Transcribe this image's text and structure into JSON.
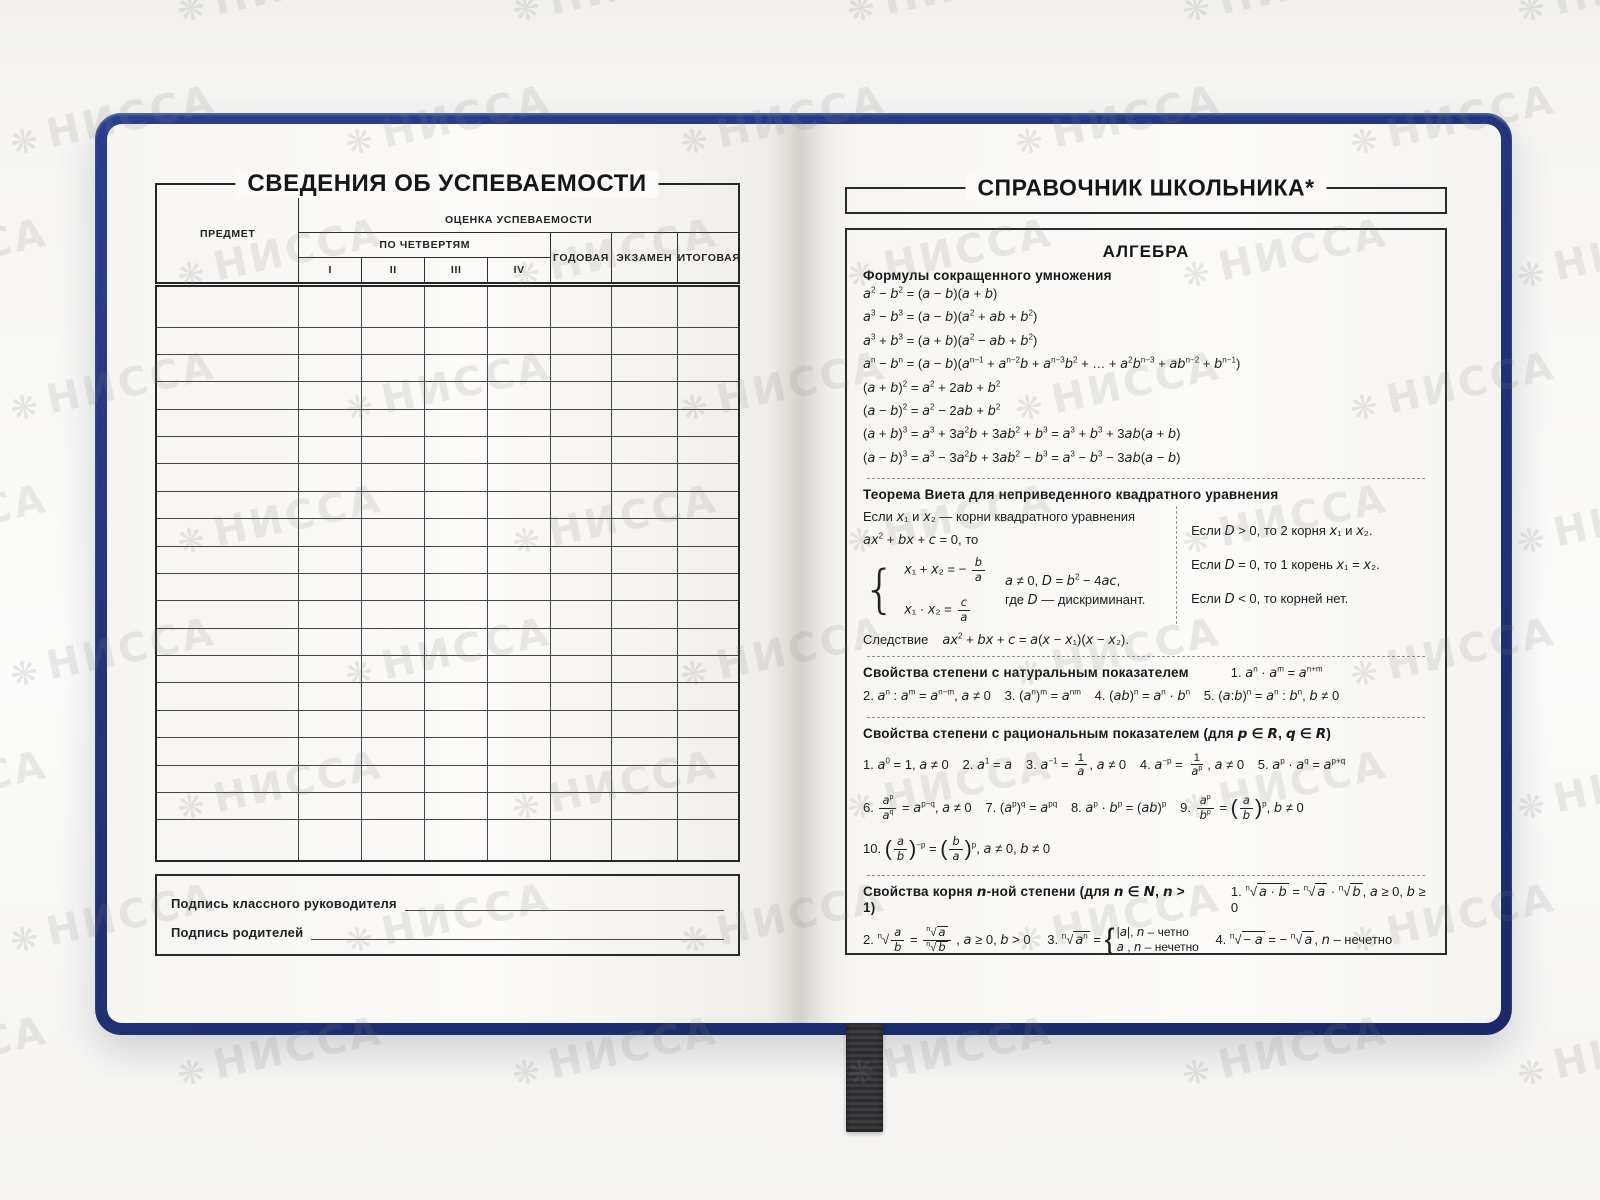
{
  "watermark": {
    "text": "НИССА",
    "logo_glyph": "❋"
  },
  "left_page": {
    "title": "СВЕДЕНИЯ ОБ УСПЕВАЕМОСТИ",
    "table": {
      "col_subject": "ПРЕДМЕТ",
      "group_header": "ОЦЕНКА УСПЕВАЕМОСТИ",
      "quarters_header": "ПО ЧЕТВЕРТЯМ",
      "quarters": [
        "I",
        "II",
        "III",
        "IV"
      ],
      "col_year": "ГОДОВАЯ",
      "col_exam": "ЭКЗАМЕН",
      "col_final": "ИТОГОВАЯ",
      "body_rows": 20,
      "body_cols": 8
    },
    "signatures": {
      "teacher_label": "Подпись классного руководителя",
      "parents_label": "Подпись родителей"
    }
  },
  "right_page": {
    "title": "СПРАВОЧНИК ШКОЛЬНИКА*",
    "algebra_title": "АЛГЕБРА",
    "mult_heading": "Формулы сокращенного умножения",
    "mult_lines": [
      "<i>a</i><sup>2</sup> − <i>b</i><sup>2</sup> = (<i>a</i> − <i>b</i>)(<i>a</i> + <i>b</i>)",
      "<i>a</i><sup>3</sup> − <i>b</i><sup>3</sup> = (<i>a</i> − <i>b</i>)(<i>a</i><sup>2</sup> + <i>ab</i> + <i>b</i><sup>2</sup>)",
      "<i>a</i><sup>3</sup> + <i>b</i><sup>3</sup> = (<i>a</i> + <i>b</i>)(<i>a</i><sup>2</sup> − <i>ab</i> + <i>b</i><sup>2</sup>)",
      "<i>a</i><sup>n</sup> − <i>b</i><sup>n</sup> = (<i>a</i> − <i>b</i>)(<i>a</i><sup>n−1</sup> + <i>a</i><sup>n−2</sup><i>b</i> + <i>a</i><sup>n−3</sup><i>b</i><sup>2</sup> + … + <i>a</i><sup>2</sup><i>b</i><sup>n−3</sup> + <i>ab</i><sup>n−2</sup> + <i>b</i><sup>n−1</sup>)",
      "(<i>a</i> + <i>b</i>)<sup>2</sup> = <i>a</i><sup>2</sup> + 2<i>ab</i> + <i>b</i><sup>2</sup>",
      "(<i>a</i> − <i>b</i>)<sup>2</sup> = <i>a</i><sup>2</sup> − 2<i>ab</i> + <i>b</i><sup>2</sup>",
      "(<i>a</i> + <i>b</i>)<sup>3</sup> = <i>a</i><sup>3</sup> + 3<i>a</i><sup>2</sup><i>b</i> + 3<i>ab</i><sup>2</sup> + <i>b</i><sup>3</sup> = <i>a</i><sup>3</sup> + <i>b</i><sup>3</sup> + 3<i>ab</i>(<i>a</i> + <i>b</i>)",
      "(<i>a</i> − <i>b</i>)<sup>3</sup> = <i>a</i><sup>3</sup> − 3<i>a</i><sup>2</sup><i>b</i> + 3<i>ab</i><sup>2</sup> − <i>b</i><sup>3</sup> = <i>a</i><sup>3</sup> − <i>b</i><sup>3</sup> − 3<i>ab</i>(<i>a</i> − <i>b</i>)"
    ],
    "vieta": {
      "heading": "Теорема Виета для неприведенного квадратного уравнения",
      "intro_line1": "Если  <i>x</i>₁ и <i>x</i>₂ — корни квадратного уравнения",
      "intro_line2": "<i>ax</i><sup>2</sup> + <i>bx</i> + <i>c</i> = 0, то",
      "eq_sum": "<i>x</i>₁ + <i>x</i>₂ = − <span class='fr'><span><i>b</i></span><span><i>a</i></span></span>",
      "eq_prod": "<i>x</i>₁ · <i>x</i>₂ = <span class='fr'><span><i>c</i></span><span><i>a</i></span></span>",
      "cond_line1": "<i>a</i> ≠ 0,  <i>D</i> = <i>b</i><sup>2</sup> − 4<i>ac</i>,",
      "cond_line2": "где <i>D</i> — дискриминант.",
      "cases": [
        "Если  <i>D</i> &gt; 0, то 2 корня <i>x</i>₁ и <i>x</i>₂.",
        "Если  <i>D</i> = 0, то 1 корень <i>x</i>₁ = <i>x</i>₂.",
        "Если  <i>D</i> &lt; 0, то корней нет."
      ],
      "corollary_label": "Следствие",
      "corollary_formula": "<i>ax</i><sup>2</sup> + <i>bx</i> + <i>c</i> = <i>a</i>(<i>x</i> − <i>x</i>₁)(<i>x</i> − <i>x</i>₂)."
    },
    "natpow": {
      "heading": "Свойства степени с натуральным показателем",
      "item1": "1. <i>a</i><sup>n</sup> · <i>a</i><sup>m</sup> = <i>a</i><sup>n+m</sup>",
      "line2": "2. <i>a</i><sup>n</sup> : <i>a</i><sup>m</sup> = <i>a</i><sup>n−m</sup>,  <i>a</i> ≠ 0 &ensp; 3. (<i>a</i><sup>n</sup>)<sup>m</sup> = <i>a</i><sup>nm</sup> &ensp; 4. (<i>ab</i>)<sup>n</sup> = <i>a</i><sup>n</sup> · <i>b</i><sup>n</sup> &ensp; 5. (<i>a</i>:<i>b</i>)<sup>n</sup> = <i>a</i><sup>n</sup> : <i>b</i><sup>n</sup>,  <i>b</i> ≠ 0"
    },
    "ratpow": {
      "heading": "Свойства степени с рациональным показателем (для <i>p</i> ∈ <i>R</i>, <i>q</i> ∈ <i>R</i>)",
      "line1": "1. <i>a</i><sup>0</sup> = 1,  <i>a</i> ≠ 0 &ensp; 2. <i>a</i><sup>1</sup> = <i>a</i> &ensp; 3. <i>a</i><sup>−1</sup> = <span class='fr'><span>1</span><span><i>a</i></span></span>,  <i>a</i> ≠ 0 &ensp; 4. <i>a</i><sup>−p</sup> = <span class='fr'><span>1</span><span><i>a</i><sup>p</sup></span></span>,  <i>a</i> ≠ 0 &ensp; 5. <i>a</i><sup>p</sup> · <i>a</i><sup>q</sup> = <i>a</i><sup>p+q</sup>",
      "line2": "6. <span class='fr'><span><i>a</i><sup>p</sup></span><span><i>a</i><sup>q</sup></span></span> = <i>a</i><sup>p−q</sup>,  <i>a</i> ≠ 0 &ensp; 7.  (<i>a</i><sup>p</sup>)<sup>q</sup> = <i>a</i><sup>pq</sup> &ensp; 8. <i>a</i><sup>p</sup> · <i>b</i><sup>p</sup> = (<i>ab</i>)<sup>p</sup> &ensp; 9. <span class='fr'><span><i>a</i><sup>p</sup></span><span><i>b</i><sup>p</sup></span></span> = <span class='par'>(</span><span class='fr'><span><i>a</i></span><span><i>b</i></span></span><span class='par'>)</span><sup>p</sup>,  <i>b</i> ≠ 0",
      "line3": "10. <span class='par'>(</span><span class='fr'><span><i>a</i></span><span><i>b</i></span></span><span class='par'>)</span><sup>−p</sup> = <span class='par'>(</span><span class='fr'><span><i>b</i></span><span><i>a</i></span></span><span class='par'>)</span><sup>p</sup>,  <i>a</i> ≠ 0, <i>b</i> ≠ 0"
    },
    "roots": {
      "heading": "Свойства корня <i>n</i>-ной степени (для <i>n</i> ∈ <i>N</i>,  <i>n</i> &gt; 1)",
      "item1": "1. <span class='rt'><sup>n</sup>√<span class='ov'><i>a</i> · <i>b</i></span></span> = <span class='rt'><sup>n</sup>√<span class='ov'><i>a</i></span></span> · <span class='rt'><sup>n</sup>√<span class='ov'><i>b</i></span></span>,  <i>a</i> ≥ 0,  <i>b</i> ≥ 0",
      "item2": "2. <span class='rt'><sup>n</sup>√</span><span class='fr'><span><i>a</i></span><span><i>b</i></span></span> = <span class='fr'><span><span class='rt'><sup>n</sup>√<span class='ov'><i>a</i></span></span></span><span><span class='rt'><sup>n</sup>√<span class='ov'><i>b</i></span></span></span></span> , <i>a</i> ≥ 0, <i>b</i> &gt; 0",
      "item3": "3. <span class='rt'><sup>n</sup>√<span class='ov'><i>a</i><sup>n</sup></span></span> = <span class='brace2'>{</span><span class='cases'><span>|<i>a</i>|, <i>n</i> – четно</span><span><i>a</i> , <i>n</i> – нечетно</span></span>",
      "item4": "4. <span class='rt'><sup>n</sup>√<span class='ov'>− <i>a</i></span></span> = − <span class='rt'><sup>n</sup>√<span class='ov'><i>a</i></span></span>, <i>n</i> – нечетно"
    }
  }
}
